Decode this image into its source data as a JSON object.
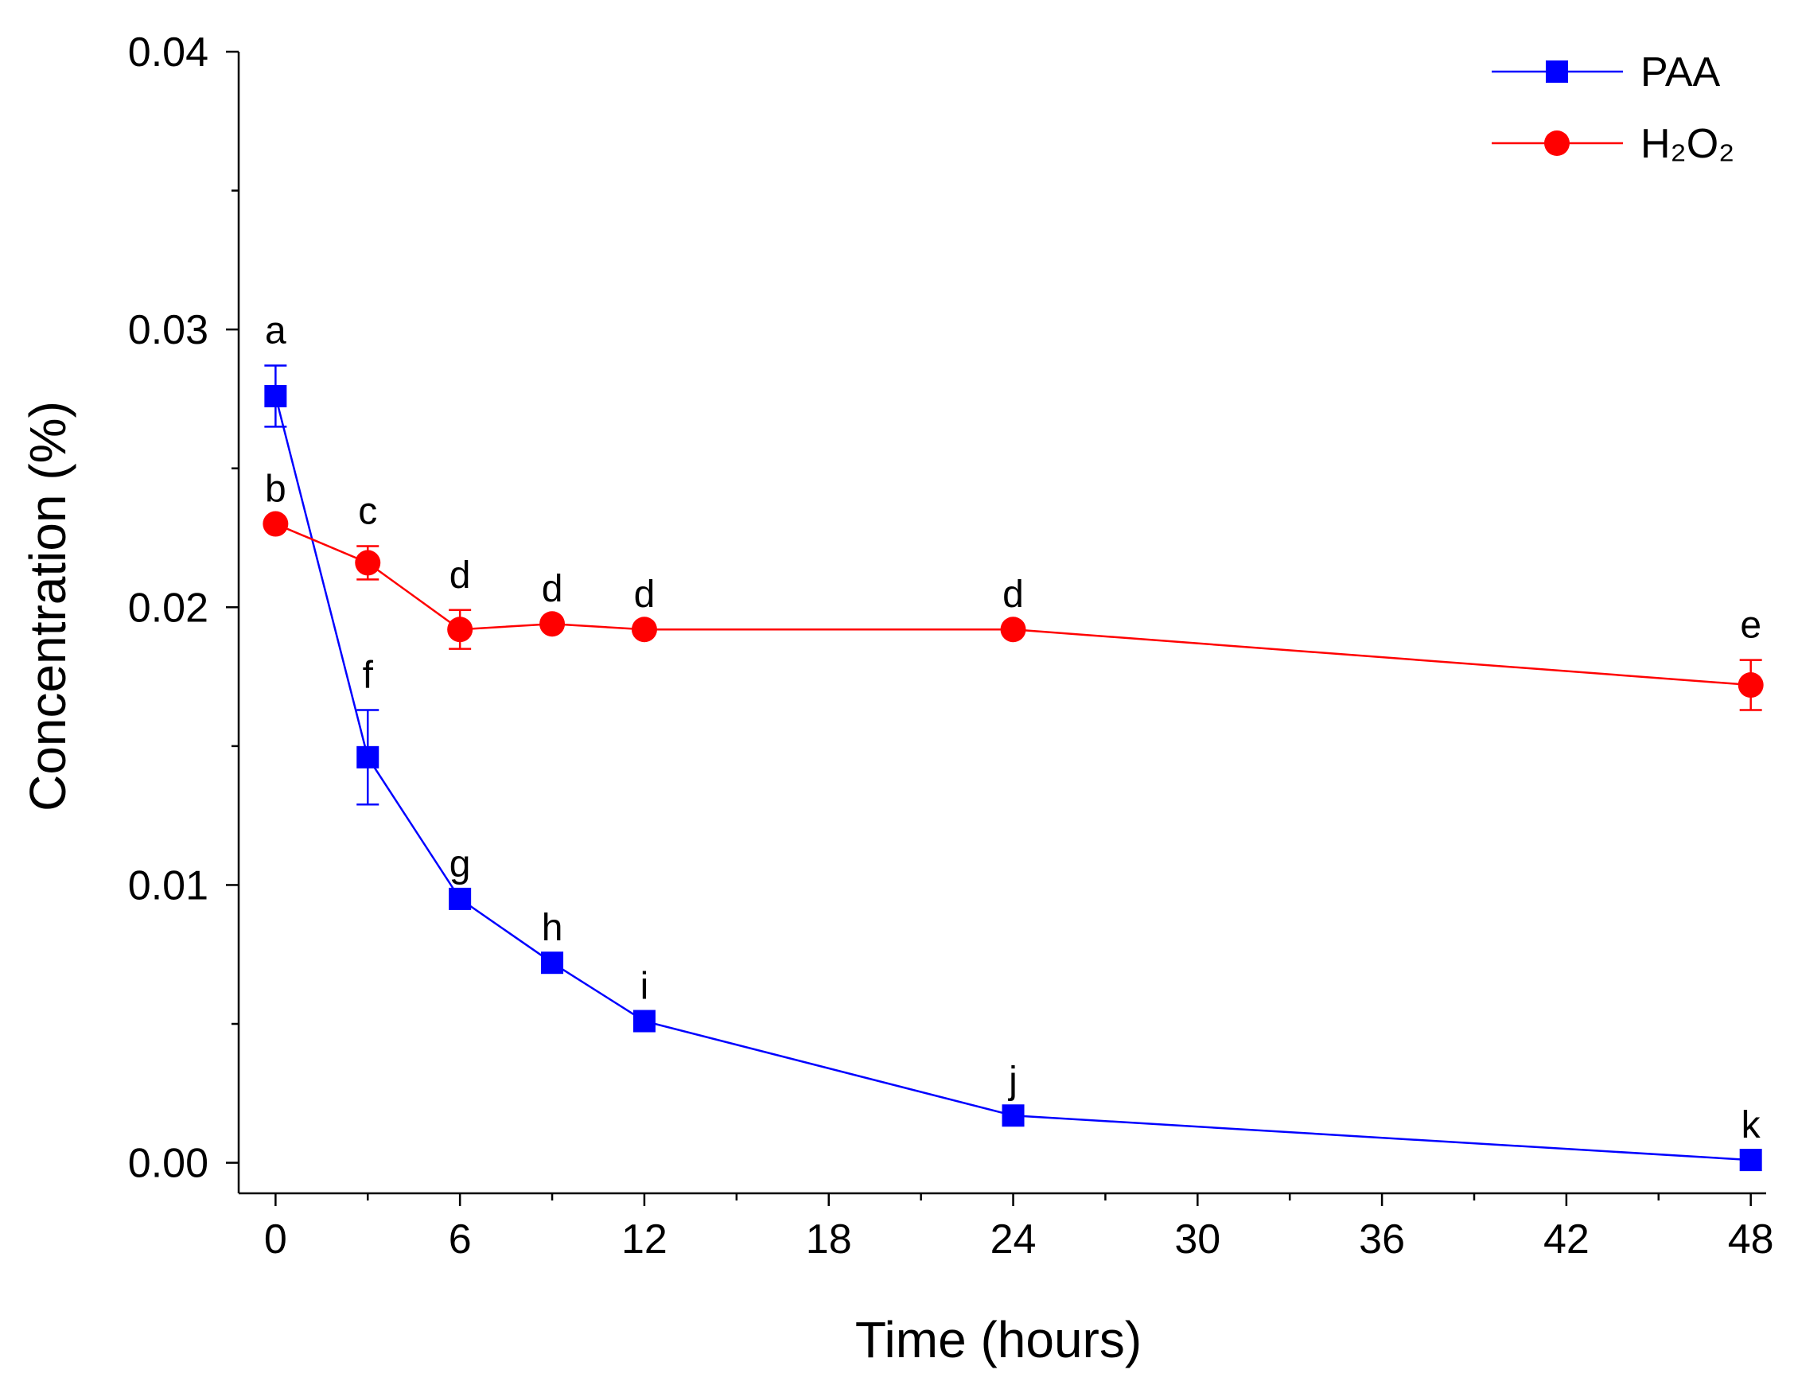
{
  "chart_data": {
    "type": "line",
    "title": "",
    "xlabel": "Time (hours)",
    "ylabel": "Concentration (%)",
    "xlim": [
      -1.2,
      48.5
    ],
    "ylim": [
      -0.0011,
      0.04
    ],
    "x_ticks": [
      0,
      6,
      12,
      18,
      24,
      30,
      36,
      42,
      48
    ],
    "x_tick_labels": [
      "0",
      "6",
      "12",
      "18",
      "24",
      "30",
      "36",
      "42",
      "48"
    ],
    "x_minor_ticks": [
      3,
      9,
      15,
      21,
      27,
      33,
      39,
      45
    ],
    "y_ticks": [
      0,
      0.01,
      0.02,
      0.03,
      0.04
    ],
    "y_tick_labels": [
      "0.00",
      "0.01",
      "0.02",
      "0.03",
      "0.04"
    ],
    "y_minor_ticks": [
      0.005,
      0.015,
      0.025,
      0.035
    ],
    "grid": false,
    "legend_position": "top-right",
    "series": [
      {
        "name": "PAA",
        "color": "#0000ff",
        "marker": "square",
        "x": [
          0,
          3,
          6,
          9,
          12,
          24,
          48
        ],
        "y": [
          0.0276,
          0.0146,
          0.0095,
          0.0072,
          0.0051,
          0.0017,
          0.0001
        ],
        "error": [
          0.0011,
          0.0017,
          0,
          0,
          0,
          0,
          0
        ],
        "labels": [
          "a",
          "f",
          "g",
          "h",
          "i",
          "j",
          "k"
        ]
      },
      {
        "name": "H₂O₂",
        "color": "#ff0000",
        "marker": "circle",
        "x": [
          0,
          3,
          6,
          9,
          12,
          24,
          48
        ],
        "y": [
          0.023,
          0.0216,
          0.0192,
          0.0194,
          0.0192,
          0.0192,
          0.0172
        ],
        "error": [
          0,
          0.0006,
          0.0007,
          0,
          0,
          0,
          0.0009
        ],
        "labels": [
          "b",
          "c",
          "d",
          "d",
          "d",
          "d",
          "e"
        ]
      }
    ]
  }
}
